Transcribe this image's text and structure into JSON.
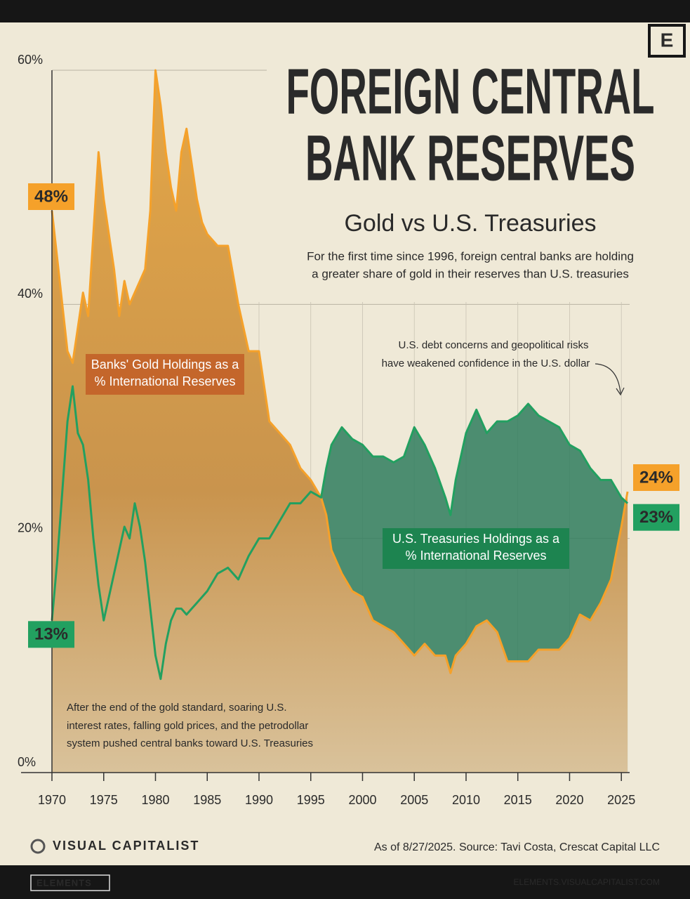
{
  "chart_data": {
    "type": "line",
    "title": [
      "FOREIGN CENTRAL",
      "BANK RESERVES"
    ],
    "subtitle": "Gold vs U.S. Treasuries",
    "description": [
      "For the first time since 1996, foreign central banks are holding",
      "a greater share of gold in their reserves than U.S. treasuries"
    ],
    "annotations": [
      [
        "U.S. debt concerns and geopolitical risks",
        "have weakened confidence in the U.S. dollar"
      ],
      [
        "After the end of the gold standard, soaring U.S.",
        "interest rates, falling gold prices, and the petrodollar",
        "system pushed central banks toward U.S. Treasuries"
      ]
    ],
    "x": [
      1970,
      1970.5,
      1971,
      1971.5,
      1972,
      1972.5,
      1973,
      1973.5,
      1974,
      1974.5,
      1975,
      1975.5,
      1976,
      1976.5,
      1977,
      1977.5,
      1978,
      1978.5,
      1979,
      1979.5,
      1980,
      1980.5,
      1981,
      1981.5,
      1982,
      1982.5,
      1983,
      1983.5,
      1984,
      1984.5,
      1985,
      1986,
      1987,
      1988,
      1989,
      1990,
      1991,
      1992,
      1993,
      1994,
      1995,
      1996,
      1996.5,
      1997,
      1998,
      1999,
      2000,
      2001,
      2002,
      2003,
      2004,
      2005,
      2006,
      2007,
      2008,
      2008.5,
      2009,
      2010,
      2011,
      2012,
      2013,
      2014,
      2015,
      2016,
      2017,
      2018,
      2019,
      2020,
      2021,
      2022,
      2023,
      2024,
      2025,
      2025.6
    ],
    "series": [
      {
        "name": "Banks' Gold Holdings as a % International Reserves",
        "color": "#f5a12a",
        "label_color": "#c4662b",
        "values": [
          48,
          44,
          40,
          36,
          35,
          38,
          41,
          39,
          46,
          53,
          49,
          46,
          43,
          39,
          42,
          40,
          41,
          42,
          43,
          48,
          60,
          57,
          53,
          50,
          48,
          53,
          55,
          52,
          49,
          47,
          46,
          45,
          45,
          40,
          36,
          36,
          30,
          29,
          28,
          26,
          25,
          23.5,
          22,
          19,
          17,
          15.5,
          15,
          13,
          12.5,
          12,
          11,
          10,
          11,
          10,
          10,
          8.5,
          10,
          11,
          12.5,
          13,
          12,
          9.5,
          9.5,
          9.5,
          10.5,
          10.5,
          10.5,
          11.5,
          13.5,
          13,
          14.5,
          16.5,
          21,
          24
        ],
        "value_labels": [
          "48%",
          null,
          null,
          null,
          null,
          null,
          null,
          null,
          null,
          null,
          null,
          null,
          null,
          null,
          null,
          null,
          null,
          null,
          null,
          null,
          null,
          null,
          null,
          null,
          null,
          null,
          null,
          null,
          null,
          null,
          null,
          null,
          null,
          null,
          null,
          null,
          null,
          null,
          null,
          null,
          null,
          null,
          null,
          null,
          null,
          null,
          null,
          null,
          null,
          null,
          null,
          null,
          null,
          null,
          null,
          null,
          null,
          null,
          null,
          null,
          null,
          null,
          null,
          null,
          null,
          null,
          null,
          null,
          null,
          null,
          null,
          null,
          null,
          "24%"
        ]
      },
      {
        "name": "U.S. Treasuries Holdings as a % International Reserves",
        "color": "#22a060",
        "label_color": "#1d8450",
        "values": [
          13,
          18,
          24,
          30,
          33,
          29,
          28,
          25,
          20,
          16,
          13,
          15,
          17,
          19,
          21,
          20,
          23,
          21,
          18,
          14,
          10,
          8,
          11,
          13,
          14,
          14,
          13.5,
          14,
          14.5,
          15,
          15.5,
          17,
          17.5,
          16.5,
          18.5,
          20,
          20,
          21.5,
          23,
          23,
          24,
          23.5,
          26,
          28,
          29.5,
          28.5,
          28,
          27,
          27,
          26.5,
          27,
          29.5,
          28,
          26,
          23.5,
          22,
          25,
          29,
          31,
          29,
          30,
          30,
          30.5,
          31.5,
          30.5,
          30,
          29.5,
          28,
          27.5,
          26,
          25,
          25,
          23.5,
          23
        ],
        "value_labels": [
          "13%",
          null,
          null,
          null,
          null,
          null,
          null,
          null,
          null,
          null,
          null,
          null,
          null,
          null,
          null,
          null,
          null,
          null,
          null,
          null,
          null,
          null,
          null,
          null,
          null,
          null,
          null,
          null,
          null,
          null,
          null,
          null,
          null,
          null,
          null,
          null,
          null,
          null,
          null,
          null,
          null,
          null,
          null,
          null,
          null,
          null,
          null,
          null,
          null,
          null,
          null,
          null,
          null,
          null,
          null,
          null,
          null,
          null,
          null,
          null,
          null,
          null,
          null,
          null,
          null,
          null,
          null,
          null,
          null,
          null,
          null,
          null,
          null,
          "23%"
        ]
      }
    ],
    "xlim": [
      1970,
      2025.8
    ],
    "xticks": [
      1970,
      1975,
      1980,
      1985,
      1990,
      1995,
      2000,
      2005,
      2010,
      2015,
      2020,
      2025
    ],
    "ylim": [
      0,
      60
    ],
    "yticks": [
      {
        "value": 0,
        "label": "0%"
      },
      {
        "value": 20,
        "label": "20%"
      },
      {
        "value": 40,
        "label": "40%"
      },
      {
        "value": 60,
        "label": "60%"
      }
    ],
    "grid": true,
    "source": "As of 8/27/2025. Source: Tavi Costa, Crescat Capital LLC"
  },
  "branding": {
    "logo": "E",
    "brand": "VISUAL CAPITALIST",
    "footer_left": "ELEMENTS",
    "footer_right": "ELEMENTS.VISUALCAPITALIST.COM"
  }
}
